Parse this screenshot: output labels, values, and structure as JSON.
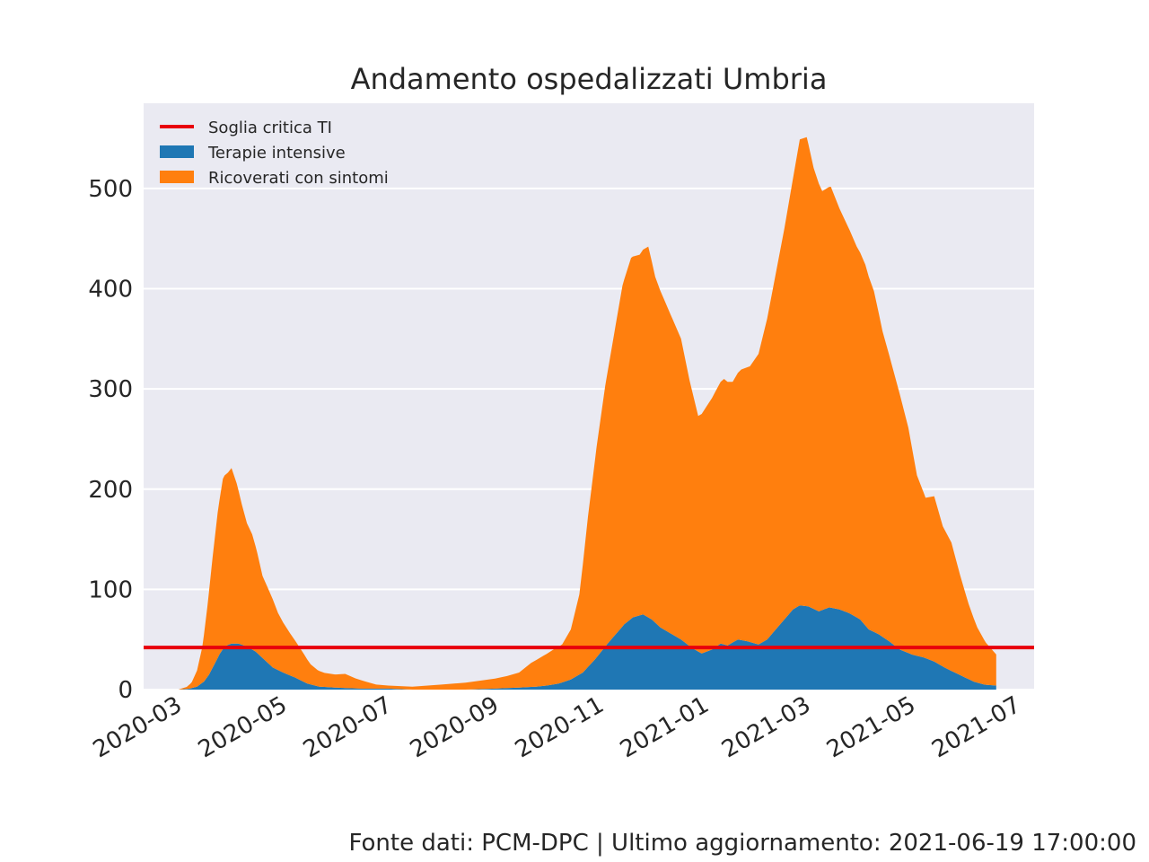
{
  "chart_data": {
    "type": "area",
    "title": "Andamento ospedalizzati Umbria",
    "xlabel": "",
    "ylabel": "",
    "ylim": [
      0,
      585
    ],
    "xlim": [
      "2020-02-10",
      "2021-07-11"
    ],
    "y_ticks": [
      0,
      100,
      200,
      300,
      400,
      500
    ],
    "x_ticks": [
      "2020-03",
      "2020-05",
      "2020-07",
      "2020-09",
      "2020-11",
      "2021-01",
      "2021-03",
      "2021-05",
      "2021-07"
    ],
    "grid": true,
    "stacked": true,
    "legend_position": "top-left",
    "threshold": {
      "name": "Soglia critica TI",
      "value": 42,
      "color": "#e8000b"
    },
    "series": [
      {
        "name": "Terapie intensive",
        "color": "#1f77b4",
        "points": [
          [
            "2020-03-01",
            0
          ],
          [
            "2020-03-08",
            1
          ],
          [
            "2020-03-12",
            3
          ],
          [
            "2020-03-16",
            8
          ],
          [
            "2020-03-19",
            15
          ],
          [
            "2020-03-22",
            25
          ],
          [
            "2020-03-25",
            35
          ],
          [
            "2020-03-28",
            43
          ],
          [
            "2020-04-01",
            46
          ],
          [
            "2020-04-05",
            46
          ],
          [
            "2020-04-10",
            43
          ],
          [
            "2020-04-15",
            38
          ],
          [
            "2020-04-20",
            30
          ],
          [
            "2020-04-25",
            22
          ],
          [
            "2020-05-01",
            17
          ],
          [
            "2020-05-08",
            12
          ],
          [
            "2020-05-15",
            6
          ],
          [
            "2020-05-22",
            3
          ],
          [
            "2020-06-01",
            2
          ],
          [
            "2020-06-15",
            1
          ],
          [
            "2020-07-01",
            1
          ],
          [
            "2020-07-15",
            0
          ],
          [
            "2020-08-01",
            0
          ],
          [
            "2020-08-15",
            0
          ],
          [
            "2020-09-01",
            1
          ],
          [
            "2020-09-15",
            2
          ],
          [
            "2020-09-25",
            3
          ],
          [
            "2020-10-01",
            4
          ],
          [
            "2020-10-08",
            6
          ],
          [
            "2020-10-15",
            10
          ],
          [
            "2020-10-22",
            17
          ],
          [
            "2020-10-29",
            30
          ],
          [
            "2020-11-05",
            45
          ],
          [
            "2020-11-10",
            55
          ],
          [
            "2020-11-15",
            65
          ],
          [
            "2020-11-20",
            72
          ],
          [
            "2020-11-26",
            75
          ],
          [
            "2020-12-01",
            70
          ],
          [
            "2020-12-06",
            62
          ],
          [
            "2020-12-12",
            56
          ],
          [
            "2020-12-18",
            50
          ],
          [
            "2020-12-24",
            42
          ],
          [
            "2020-12-30",
            36
          ],
          [
            "2021-01-05",
            40
          ],
          [
            "2021-01-10",
            46
          ],
          [
            "2021-01-14",
            44
          ],
          [
            "2021-01-20",
            50
          ],
          [
            "2021-01-26",
            48
          ],
          [
            "2021-02-01",
            45
          ],
          [
            "2021-02-06",
            50
          ],
          [
            "2021-02-11",
            60
          ],
          [
            "2021-02-16",
            70
          ],
          [
            "2021-02-21",
            80
          ],
          [
            "2021-02-25",
            84
          ],
          [
            "2021-03-02",
            83
          ],
          [
            "2021-03-08",
            78
          ],
          [
            "2021-03-14",
            82
          ],
          [
            "2021-03-20",
            80
          ],
          [
            "2021-03-26",
            76
          ],
          [
            "2021-04-01",
            70
          ],
          [
            "2021-04-06",
            60
          ],
          [
            "2021-04-12",
            55
          ],
          [
            "2021-04-18",
            48
          ],
          [
            "2021-04-24",
            40
          ],
          [
            "2021-05-01",
            35
          ],
          [
            "2021-05-08",
            32
          ],
          [
            "2021-05-14",
            28
          ],
          [
            "2021-05-20",
            22
          ],
          [
            "2021-05-26",
            17
          ],
          [
            "2021-06-01",
            12
          ],
          [
            "2021-06-06",
            8
          ],
          [
            "2021-06-12",
            5
          ],
          [
            "2021-06-19",
            4
          ]
        ]
      },
      {
        "name": "Ricoverati con sintomi",
        "color": "#ff7f0e",
        "points": [
          [
            "2020-03-01",
            0
          ],
          [
            "2020-03-06",
            2
          ],
          [
            "2020-03-09",
            6
          ],
          [
            "2020-03-12",
            16
          ],
          [
            "2020-03-15",
            35
          ],
          [
            "2020-03-18",
            70
          ],
          [
            "2020-03-21",
            110
          ],
          [
            "2020-03-24",
            145
          ],
          [
            "2020-03-27",
            170
          ],
          [
            "2020-03-30",
            172
          ],
          [
            "2020-04-01",
            175
          ],
          [
            "2020-04-04",
            160
          ],
          [
            "2020-04-07",
            140
          ],
          [
            "2020-04-10",
            123
          ],
          [
            "2020-04-13",
            115
          ],
          [
            "2020-04-16",
            100
          ],
          [
            "2020-04-19",
            82
          ],
          [
            "2020-04-22",
            75
          ],
          [
            "2020-04-25",
            68
          ],
          [
            "2020-04-28",
            57
          ],
          [
            "2020-05-01",
            50
          ],
          [
            "2020-05-05",
            42
          ],
          [
            "2020-05-09",
            35
          ],
          [
            "2020-05-13",
            28
          ],
          [
            "2020-05-17",
            20
          ],
          [
            "2020-05-21",
            16
          ],
          [
            "2020-05-25",
            14
          ],
          [
            "2020-05-31",
            13
          ],
          [
            "2020-06-06",
            14
          ],
          [
            "2020-06-12",
            10
          ],
          [
            "2020-06-18",
            7
          ],
          [
            "2020-06-24",
            4
          ],
          [
            "2020-07-01",
            3
          ],
          [
            "2020-07-15",
            3
          ],
          [
            "2020-08-01",
            5
          ],
          [
            "2020-08-15",
            7
          ],
          [
            "2020-09-01",
            10
          ],
          [
            "2020-09-08",
            12
          ],
          [
            "2020-09-15",
            15
          ],
          [
            "2020-09-22",
            24
          ],
          [
            "2020-09-29",
            30
          ],
          [
            "2020-10-05",
            35
          ],
          [
            "2020-10-10",
            38
          ],
          [
            "2020-10-15",
            50
          ],
          [
            "2020-10-20",
            80
          ],
          [
            "2020-10-25",
            150
          ],
          [
            "2020-10-30",
            210
          ],
          [
            "2020-11-04",
            260
          ],
          [
            "2020-11-09",
            300
          ],
          [
            "2020-11-14",
            340
          ],
          [
            "2020-11-19",
            360
          ],
          [
            "2020-11-24",
            360
          ],
          [
            "2020-11-29",
            370
          ],
          [
            "2020-12-03",
            345
          ],
          [
            "2020-12-08",
            330
          ],
          [
            "2020-12-13",
            315
          ],
          [
            "2020-12-18",
            300
          ],
          [
            "2020-12-23",
            265
          ],
          [
            "2020-12-28",
            235
          ],
          [
            "2021-01-02",
            245
          ],
          [
            "2021-01-07",
            255
          ],
          [
            "2021-01-12",
            265
          ],
          [
            "2021-01-17",
            260
          ],
          [
            "2021-01-22",
            270
          ],
          [
            "2021-01-27",
            275
          ],
          [
            "2021-02-01",
            290
          ],
          [
            "2021-02-06",
            320
          ],
          [
            "2021-02-11",
            355
          ],
          [
            "2021-02-16",
            390
          ],
          [
            "2021-02-21",
            430
          ],
          [
            "2021-02-25",
            465
          ],
          [
            "2021-03-01",
            468
          ],
          [
            "2021-03-05",
            440
          ],
          [
            "2021-03-10",
            418
          ],
          [
            "2021-03-15",
            420
          ],
          [
            "2021-03-20",
            400
          ],
          [
            "2021-03-25",
            385
          ],
          [
            "2021-03-30",
            370
          ],
          [
            "2021-04-04",
            360
          ],
          [
            "2021-04-09",
            340
          ],
          [
            "2021-04-14",
            305
          ],
          [
            "2021-04-19",
            280
          ],
          [
            "2021-04-24",
            255
          ],
          [
            "2021-04-29",
            225
          ],
          [
            "2021-05-04",
            180
          ],
          [
            "2021-05-09",
            160
          ],
          [
            "2021-05-14",
            165
          ],
          [
            "2021-05-19",
            140
          ],
          [
            "2021-05-24",
            128
          ],
          [
            "2021-05-29",
            100
          ],
          [
            "2021-06-03",
            75
          ],
          [
            "2021-06-08",
            55
          ],
          [
            "2021-06-13",
            42
          ],
          [
            "2021-06-19",
            31
          ]
        ]
      }
    ]
  },
  "footer": "Fonte dati: PCM-DPC | Ultimo aggiornamento: 2021-06-19 17:00:00"
}
